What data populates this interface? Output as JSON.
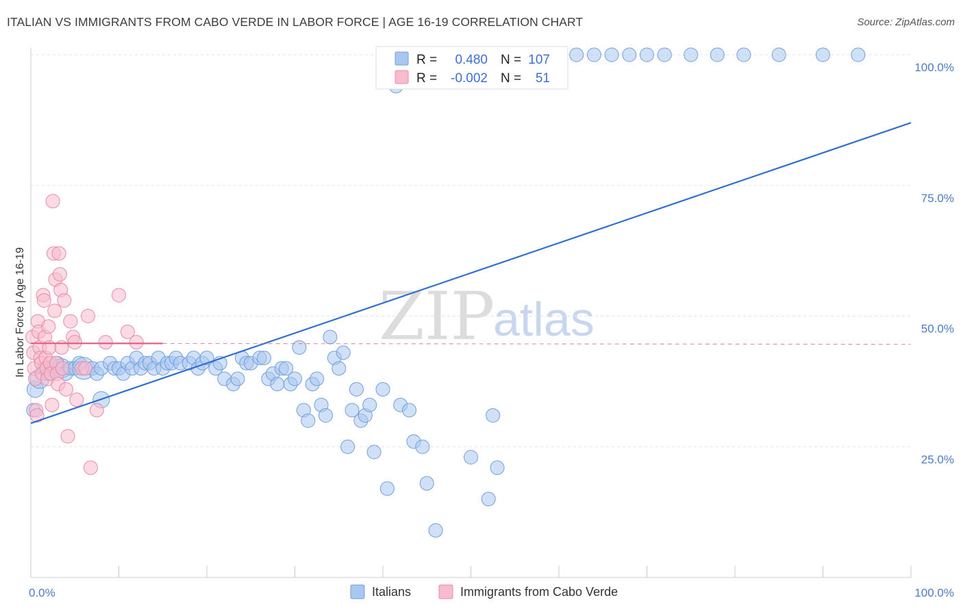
{
  "title": "ITALIAN VS IMMIGRANTS FROM CABO VERDE IN LABOR FORCE | AGE 16-19 CORRELATION CHART",
  "source": "Source: ZipAtlas.com",
  "watermark": {
    "zip": "ZIP",
    "atlas": "atlas"
  },
  "legend": {
    "rows": [
      {
        "r_label": "R =",
        "r_value": "0.480",
        "n_label": "N =",
        "n_value": "107"
      },
      {
        "r_label": "R =",
        "r_value": "-0.002",
        "n_label": "N =",
        "n_value": "51"
      }
    ]
  },
  "bottom_legend": [
    "Italians",
    "Immigrants from Cabo Verde"
  ],
  "colors": {
    "blue_fill": "#a9c6f0",
    "blue_stroke": "#6f9fdf",
    "blue_line": "#2f6fcf",
    "pink_fill": "#f7bccd",
    "pink_stroke": "#e88aa6",
    "pink_line": "#e0608a"
  },
  "chart_data": {
    "type": "scatter",
    "title": "ITALIAN VS IMMIGRANTS FROM CABO VERDE IN LABOR FORCE | AGE 16-19 CORRELATION CHART",
    "xlabel": "",
    "ylabel": "In Labor Force | Age 16-19",
    "xlim": [
      0,
      100
    ],
    "ylim": [
      0,
      100
    ],
    "x_tick_labels": [
      "0.0%",
      "100.0%"
    ],
    "y_tick_labels": [
      "25.0%",
      "50.0%",
      "75.0%",
      "100.0%"
    ],
    "y_tick_values": [
      25,
      50,
      75,
      100
    ],
    "series": [
      {
        "name": "Italians",
        "R": 0.48,
        "N": 107,
        "trend": {
          "x": [
            0,
            100
          ],
          "y": [
            29.5,
            87
          ]
        },
        "points": [
          [
            0.3,
            32,
            10
          ],
          [
            0.5,
            36,
            12
          ],
          [
            1,
            38,
            14
          ],
          [
            1.5,
            40,
            10
          ],
          [
            2,
            39,
            10
          ],
          [
            2.5,
            40,
            12
          ],
          [
            3,
            41,
            10
          ],
          [
            3.5,
            40,
            14
          ],
          [
            4,
            39,
            10
          ],
          [
            4.5,
            40,
            10
          ],
          [
            5,
            40,
            10
          ],
          [
            5.5,
            41,
            10
          ],
          [
            6,
            40,
            16
          ],
          [
            7,
            40,
            10
          ],
          [
            7.5,
            39,
            10
          ],
          [
            8,
            40,
            10
          ],
          [
            9,
            41,
            10
          ],
          [
            9.5,
            40,
            10
          ],
          [
            10,
            40,
            10
          ],
          [
            10.5,
            39,
            10
          ],
          [
            11,
            41,
            10
          ],
          [
            11.5,
            40,
            10
          ],
          [
            12,
            42,
            10
          ],
          [
            12.5,
            40,
            10
          ],
          [
            13,
            41,
            10
          ],
          [
            13.5,
            41,
            10
          ],
          [
            14,
            40,
            10
          ],
          [
            14.5,
            42,
            10
          ],
          [
            15,
            40,
            10
          ],
          [
            15.5,
            41,
            10
          ],
          [
            16,
            41,
            10
          ],
          [
            16.5,
            42,
            10
          ],
          [
            17,
            41,
            10
          ],
          [
            18,
            41,
            10
          ],
          [
            18.5,
            42,
            10
          ],
          [
            19,
            40,
            10
          ],
          [
            19.5,
            41,
            10
          ],
          [
            20,
            42,
            10
          ],
          [
            21,
            40,
            10
          ],
          [
            21.5,
            41,
            10
          ],
          [
            22,
            38,
            10
          ],
          [
            23,
            37,
            10
          ],
          [
            23.5,
            38,
            10
          ],
          [
            24,
            42,
            10
          ],
          [
            24.5,
            41,
            10
          ],
          [
            25,
            41,
            10
          ],
          [
            26,
            42,
            10
          ],
          [
            26.5,
            42,
            10
          ],
          [
            27,
            38,
            10
          ],
          [
            27.5,
            39,
            10
          ],
          [
            28,
            37,
            10
          ],
          [
            28.5,
            40,
            10
          ],
          [
            29,
            40,
            10
          ],
          [
            29.5,
            37,
            10
          ],
          [
            30,
            38,
            10
          ],
          [
            30.5,
            44,
            10
          ],
          [
            31,
            32,
            10
          ],
          [
            31.5,
            30,
            10
          ],
          [
            32,
            37,
            10
          ],
          [
            32.5,
            38,
            10
          ],
          [
            33,
            33,
            10
          ],
          [
            33.5,
            31,
            10
          ],
          [
            34,
            46,
            10
          ],
          [
            34.5,
            42,
            10
          ],
          [
            35,
            40,
            10
          ],
          [
            35.5,
            43,
            10
          ],
          [
            36,
            25,
            10
          ],
          [
            36.5,
            32,
            10
          ],
          [
            37,
            36,
            10
          ],
          [
            37.5,
            30,
            10
          ],
          [
            38,
            31,
            10
          ],
          [
            38.5,
            33,
            10
          ],
          [
            39,
            24,
            10
          ],
          [
            40,
            36,
            10
          ],
          [
            40.5,
            17,
            10
          ],
          [
            41.5,
            94,
            10
          ],
          [
            42,
            33,
            10
          ],
          [
            43,
            32,
            10
          ],
          [
            43.5,
            26,
            10
          ],
          [
            44.5,
            25,
            10
          ],
          [
            45,
            18,
            10
          ],
          [
            46,
            9,
            10
          ],
          [
            47,
            100,
            10
          ],
          [
            48,
            100,
            10
          ],
          [
            49,
            100,
            10
          ],
          [
            50,
            23,
            10
          ],
          [
            51,
            100,
            10
          ],
          [
            52,
            15,
            10
          ],
          [
            52.5,
            31,
            10
          ],
          [
            53,
            21,
            10
          ],
          [
            54,
            100,
            10
          ],
          [
            56,
            100,
            10
          ],
          [
            58,
            100,
            10
          ],
          [
            60,
            100,
            10
          ],
          [
            62,
            100,
            10
          ],
          [
            64,
            100,
            10
          ],
          [
            66,
            100,
            10
          ],
          [
            68,
            100,
            10
          ],
          [
            70,
            100,
            10
          ],
          [
            72,
            100,
            10
          ],
          [
            75,
            100,
            10
          ],
          [
            78,
            100,
            10
          ],
          [
            81,
            100,
            10
          ],
          [
            85,
            100,
            10
          ],
          [
            90,
            100,
            10
          ],
          [
            94,
            100,
            10
          ],
          [
            8,
            34,
            12
          ]
        ]
      },
      {
        "name": "Immigrants from Cabo Verde",
        "R": -0.002,
        "N": 51,
        "trend": {
          "x": [
            0,
            100
          ],
          "y": [
            44.8,
            44.6
          ]
        },
        "points": [
          [
            0.2,
            46,
            10
          ],
          [
            0.3,
            43,
            10
          ],
          [
            0.4,
            40,
            10
          ],
          [
            0.5,
            38,
            10
          ],
          [
            0.6,
            32,
            10
          ],
          [
            0.7,
            31,
            10
          ],
          [
            0.8,
            49,
            10
          ],
          [
            0.9,
            47,
            10
          ],
          [
            1,
            44,
            10
          ],
          [
            1.1,
            42,
            10
          ],
          [
            1.2,
            41,
            10
          ],
          [
            1.3,
            39,
            10
          ],
          [
            1.4,
            54,
            10
          ],
          [
            1.5,
            53,
            10
          ],
          [
            1.6,
            46,
            10
          ],
          [
            1.7,
            42,
            10
          ],
          [
            1.8,
            40,
            10
          ],
          [
            1.9,
            38,
            10
          ],
          [
            2,
            48,
            10
          ],
          [
            2.1,
            44,
            10
          ],
          [
            2.2,
            41,
            10
          ],
          [
            2.3,
            39,
            10
          ],
          [
            2.4,
            33,
            10
          ],
          [
            2.5,
            72,
            10
          ],
          [
            2.6,
            62,
            10
          ],
          [
            2.7,
            51,
            10
          ],
          [
            2.8,
            57,
            10
          ],
          [
            2.9,
            41,
            10
          ],
          [
            3,
            39,
            10
          ],
          [
            3.1,
            37,
            10
          ],
          [
            3.2,
            62,
            10
          ],
          [
            3.3,
            58,
            10
          ],
          [
            3.4,
            55,
            10
          ],
          [
            3.5,
            44,
            10
          ],
          [
            3.6,
            40,
            10
          ],
          [
            3.8,
            53,
            10
          ],
          [
            4,
            36,
            10
          ],
          [
            4.2,
            27,
            10
          ],
          [
            4.5,
            49,
            10
          ],
          [
            4.8,
            46,
            10
          ],
          [
            5,
            45,
            10
          ],
          [
            5.2,
            34,
            10
          ],
          [
            5.8,
            40,
            10
          ],
          [
            6.2,
            40,
            10
          ],
          [
            6.5,
            50,
            10
          ],
          [
            6.8,
            21,
            10
          ],
          [
            7.5,
            32,
            10
          ],
          [
            8.5,
            45,
            10
          ],
          [
            10,
            54,
            10
          ],
          [
            11,
            47,
            10
          ],
          [
            12,
            45,
            10
          ]
        ]
      }
    ]
  }
}
